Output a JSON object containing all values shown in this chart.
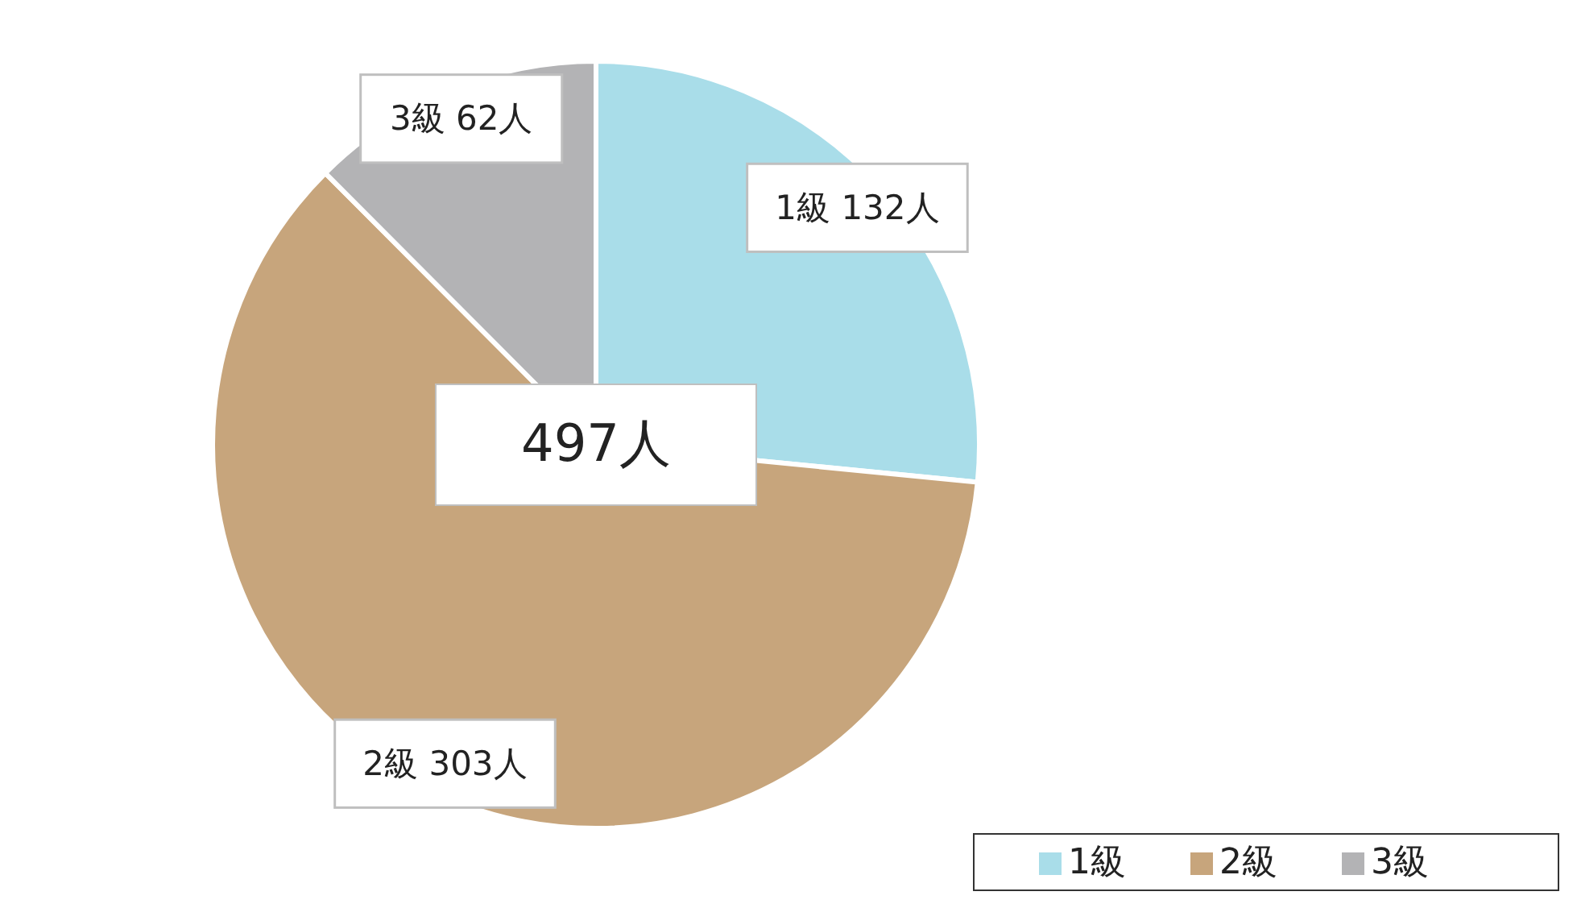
{
  "chart_data": {
    "type": "pie",
    "categories": [
      "1級",
      "2級",
      "3級"
    ],
    "values": [
      132,
      303,
      62
    ],
    "colors": [
      "#a9dde9",
      "#c7a57c",
      "#b3b3b5"
    ],
    "value_labels": [
      "1級 132人",
      "2級 303人",
      "3級 62人"
    ],
    "annotations": [
      "497人"
    ],
    "legend": "bottom right"
  }
}
